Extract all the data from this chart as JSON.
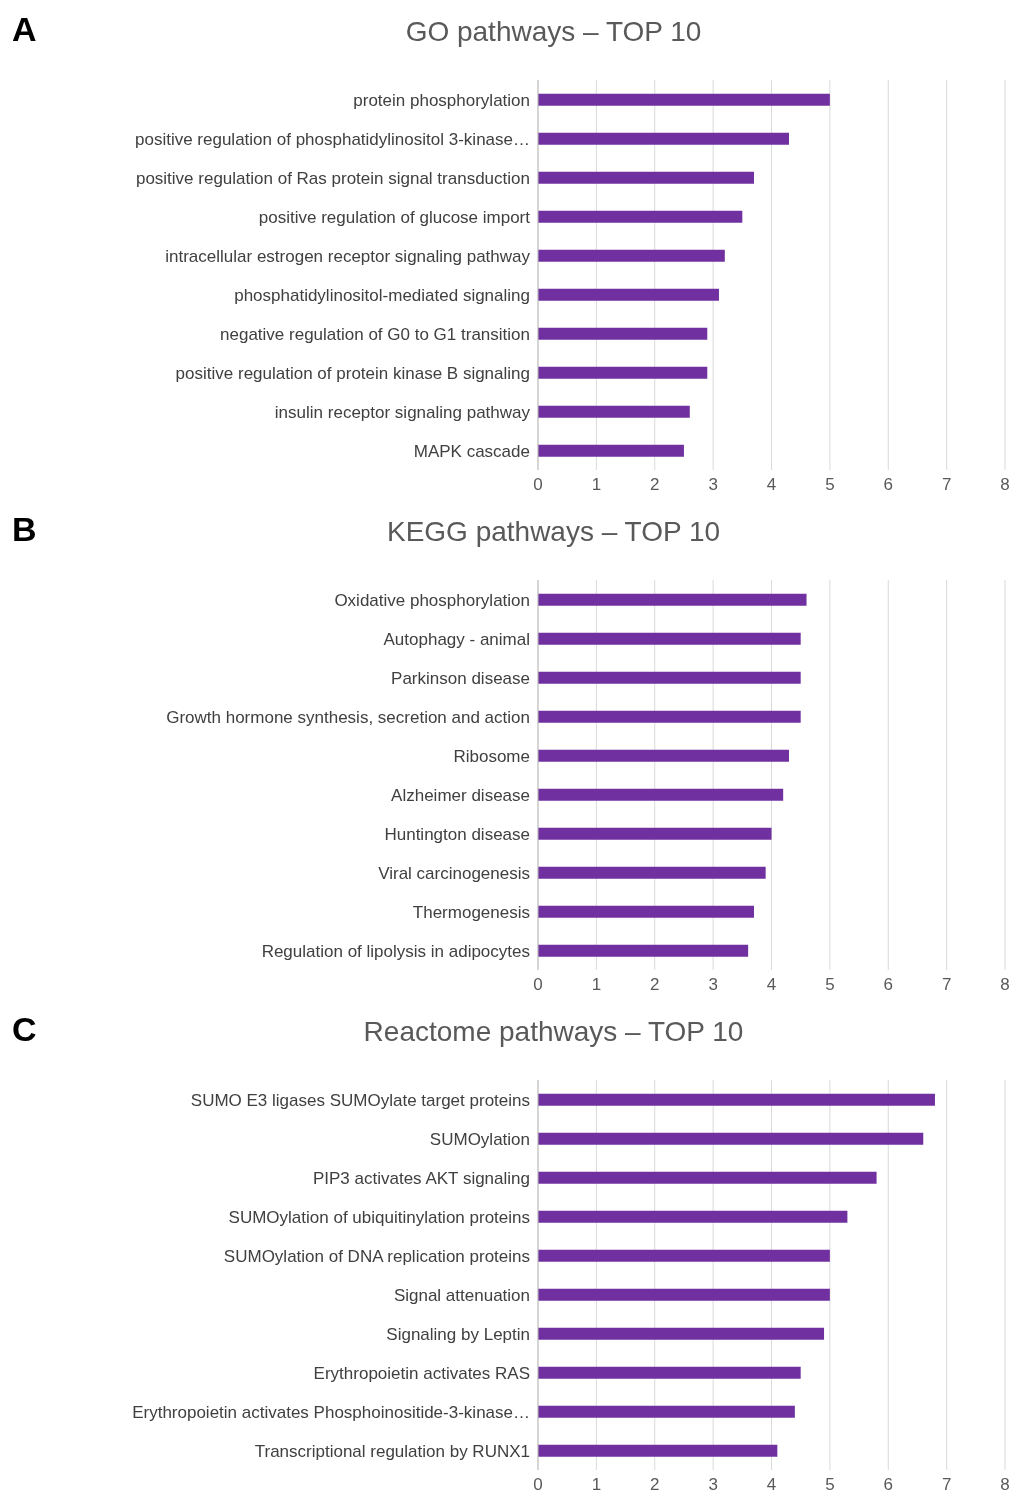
{
  "chart_data": [
    {
      "type": "bar",
      "orientation": "horizontal",
      "title": "GO pathways – TOP 10",
      "annotations": [
        "A"
      ],
      "categories": [
        "protein phosphorylation",
        "positive regulation of phosphatidylinositol 3-kinase…",
        "positive regulation of Ras protein signal transduction",
        "positive regulation of glucose import",
        "intracellular estrogen receptor signaling pathway",
        "phosphatidylinositol-mediated signaling",
        "negative regulation of G0 to G1 transition",
        "positive regulation of protein kinase B signaling",
        "insulin receptor signaling pathway",
        "MAPK cascade"
      ],
      "values": [
        5.0,
        4.3,
        3.7,
        3.5,
        3.2,
        3.1,
        2.9,
        2.9,
        2.6,
        2.5
      ],
      "color": "#7030a0",
      "xlim": [
        0,
        8
      ],
      "xticks": [
        0,
        1,
        2,
        3,
        4,
        5,
        6,
        7,
        8
      ],
      "grid": "x"
    },
    {
      "type": "bar",
      "orientation": "horizontal",
      "title": "KEGG pathways – TOP 10",
      "annotations": [
        "B"
      ],
      "categories": [
        "Oxidative phosphorylation",
        "Autophagy - animal",
        "Parkinson disease",
        "Growth hormone synthesis, secretion and action",
        "Ribosome",
        "Alzheimer disease",
        "Huntington disease",
        "Viral carcinogenesis",
        "Thermogenesis",
        "Regulation of lipolysis in adipocytes"
      ],
      "values": [
        4.6,
        4.5,
        4.5,
        4.5,
        4.3,
        4.2,
        4.0,
        3.9,
        3.7,
        3.6
      ],
      "color": "#7030a0",
      "xlim": [
        0,
        8
      ],
      "xticks": [
        0,
        1,
        2,
        3,
        4,
        5,
        6,
        7,
        8
      ],
      "grid": "x"
    },
    {
      "type": "bar",
      "orientation": "horizontal",
      "title": "Reactome pathways – TOP 10",
      "annotations": [
        "C"
      ],
      "categories": [
        "SUMO E3 ligases SUMOylate target proteins",
        "SUMOylation",
        "PIP3 activates AKT signaling",
        "SUMOylation of ubiquitinylation proteins",
        "SUMOylation of DNA replication proteins",
        "Signal attenuation",
        "Signaling by Leptin",
        "Erythropoietin activates RAS",
        "Erythropoietin activates Phosphoinositide-3-kinase…",
        "Transcriptional regulation by RUNX1"
      ],
      "values": [
        6.8,
        6.6,
        5.8,
        5.3,
        5.0,
        5.0,
        4.9,
        4.5,
        4.4,
        4.1
      ],
      "color": "#7030a0",
      "xlim": [
        0,
        8
      ],
      "xticks": [
        0,
        1,
        2,
        3,
        4,
        5,
        6,
        7,
        8
      ],
      "grid": "x"
    }
  ]
}
